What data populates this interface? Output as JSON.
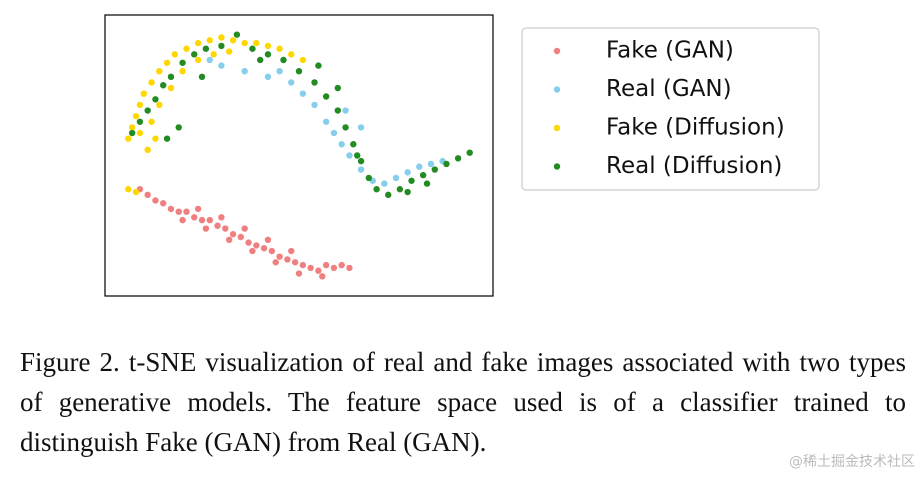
{
  "chart_data": {
    "type": "scatter",
    "xlim": [
      0,
      100
    ],
    "ylim": [
      0,
      100
    ],
    "series": [
      {
        "name": "Fake (GAN)",
        "color": "#f08080",
        "x": [
          9,
          11,
          13,
          15,
          17,
          19,
          21,
          23,
          25,
          27,
          29,
          31,
          33,
          35,
          37,
          39,
          41,
          43,
          45,
          47,
          49,
          51,
          53,
          55,
          57,
          59,
          61,
          63,
          20,
          26,
          32,
          38,
          44,
          50,
          56,
          36,
          42,
          48,
          30,
          24
        ],
        "values": [
          38,
          36,
          34,
          33,
          31,
          30,
          30,
          28,
          27,
          27,
          25,
          24,
          22,
          21,
          19,
          18,
          17,
          16,
          14,
          13,
          12,
          11,
          10,
          9,
          11,
          10,
          11,
          10,
          27,
          24,
          20,
          16,
          12,
          8,
          7,
          24,
          20,
          16,
          28,
          31
        ]
      },
      {
        "name": "Real (GAN)",
        "color": "#87ceeb",
        "x": [
          45,
          48,
          51,
          54,
          57,
          59,
          61,
          63,
          66,
          69,
          72,
          75,
          78,
          81,
          84,
          87,
          30,
          36,
          42,
          27,
          66,
          62
        ],
        "values": [
          80,
          76,
          72,
          68,
          62,
          58,
          54,
          50,
          45,
          41,
          40,
          42,
          44,
          46,
          47,
          48,
          82,
          80,
          78,
          84,
          60,
          66
        ]
      },
      {
        "name": "Fake (Diffusion)",
        "color": "#ffd700",
        "x": [
          6,
          7,
          8,
          9,
          10,
          12,
          14,
          16,
          18,
          21,
          24,
          27,
          30,
          33,
          36,
          39,
          42,
          45,
          48,
          51,
          9,
          12,
          14,
          17,
          20,
          24,
          28,
          32,
          11,
          13,
          6,
          8
        ],
        "values": [
          56,
          60,
          64,
          68,
          72,
          76,
          80,
          83,
          86,
          88,
          90,
          91,
          92,
          91,
          90,
          90,
          89,
          88,
          86,
          84,
          58,
          62,
          68,
          74,
          80,
          84,
          86,
          87,
          52,
          56,
          38,
          37
        ]
      },
      {
        "name": "Real (Diffusion)",
        "color": "#228b22",
        "x": [
          7,
          9,
          11,
          13,
          15,
          17,
          20,
          23,
          26,
          30,
          34,
          38,
          42,
          46,
          50,
          54,
          57,
          60,
          62,
          64,
          66,
          68,
          70,
          73,
          76,
          79,
          82,
          85,
          88,
          91,
          94,
          83,
          78,
          65,
          19,
          16,
          25,
          40,
          55,
          60
        ],
        "values": [
          58,
          62,
          66,
          70,
          75,
          78,
          83,
          86,
          88,
          89,
          93,
          88,
          86,
          84,
          80,
          76,
          71,
          66,
          60,
          54,
          48,
          42,
          38,
          36,
          38,
          41,
          43,
          45,
          47,
          49,
          51,
          40,
          37,
          50,
          60,
          56,
          78,
          84,
          82,
          74
        ]
      }
    ],
    "legend": "outside right",
    "caption": "Figure 2. t-SNE visualization of real and fake images associated with two types of generative models. The feature space used is of a classifier trained to distinguish Fake (GAN) from Real (GAN).",
    "watermark": "@稀土掘金技术社区"
  }
}
